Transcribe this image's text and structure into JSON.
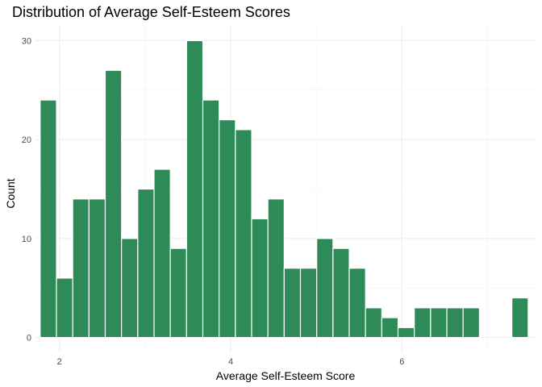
{
  "chart_data": {
    "type": "bar",
    "title": "Distribution of Average Self-Esteem Scores",
    "xlabel": "Average Self-Esteem Score",
    "ylabel": "Count",
    "xlim": [
      1.72,
      7.58
    ],
    "ylim": [
      -1.5,
      31.5
    ],
    "x_ticks": [
      2,
      4,
      6
    ],
    "y_ticks": [
      0,
      10,
      20,
      30
    ],
    "grid": true,
    "bin_width": 0.1905,
    "bar_color": "#2e8b57",
    "bar_edge_color": "#ffffff",
    "bins": [
      {
        "x": 1.87,
        "count": 24
      },
      {
        "x": 2.06,
        "count": 6
      },
      {
        "x": 2.25,
        "count": 14
      },
      {
        "x": 2.44,
        "count": 14
      },
      {
        "x": 2.63,
        "count": 27
      },
      {
        "x": 2.82,
        "count": 10
      },
      {
        "x": 3.01,
        "count": 15
      },
      {
        "x": 3.2,
        "count": 17
      },
      {
        "x": 3.39,
        "count": 9
      },
      {
        "x": 3.58,
        "count": 30
      },
      {
        "x": 3.77,
        "count": 24
      },
      {
        "x": 3.96,
        "count": 22
      },
      {
        "x": 4.15,
        "count": 21
      },
      {
        "x": 4.34,
        "count": 12
      },
      {
        "x": 4.53,
        "count": 14
      },
      {
        "x": 4.72,
        "count": 7
      },
      {
        "x": 4.91,
        "count": 7
      },
      {
        "x": 5.1,
        "count": 10
      },
      {
        "x": 5.29,
        "count": 9
      },
      {
        "x": 5.48,
        "count": 7
      },
      {
        "x": 5.67,
        "count": 3
      },
      {
        "x": 5.86,
        "count": 2
      },
      {
        "x": 6.05,
        "count": 1
      },
      {
        "x": 6.24,
        "count": 3
      },
      {
        "x": 6.43,
        "count": 3
      },
      {
        "x": 6.62,
        "count": 3
      },
      {
        "x": 6.81,
        "count": 3
      },
      {
        "x": 7.0,
        "count": 0
      },
      {
        "x": 7.19,
        "count": 0
      },
      {
        "x": 7.38,
        "count": 4
      }
    ]
  }
}
